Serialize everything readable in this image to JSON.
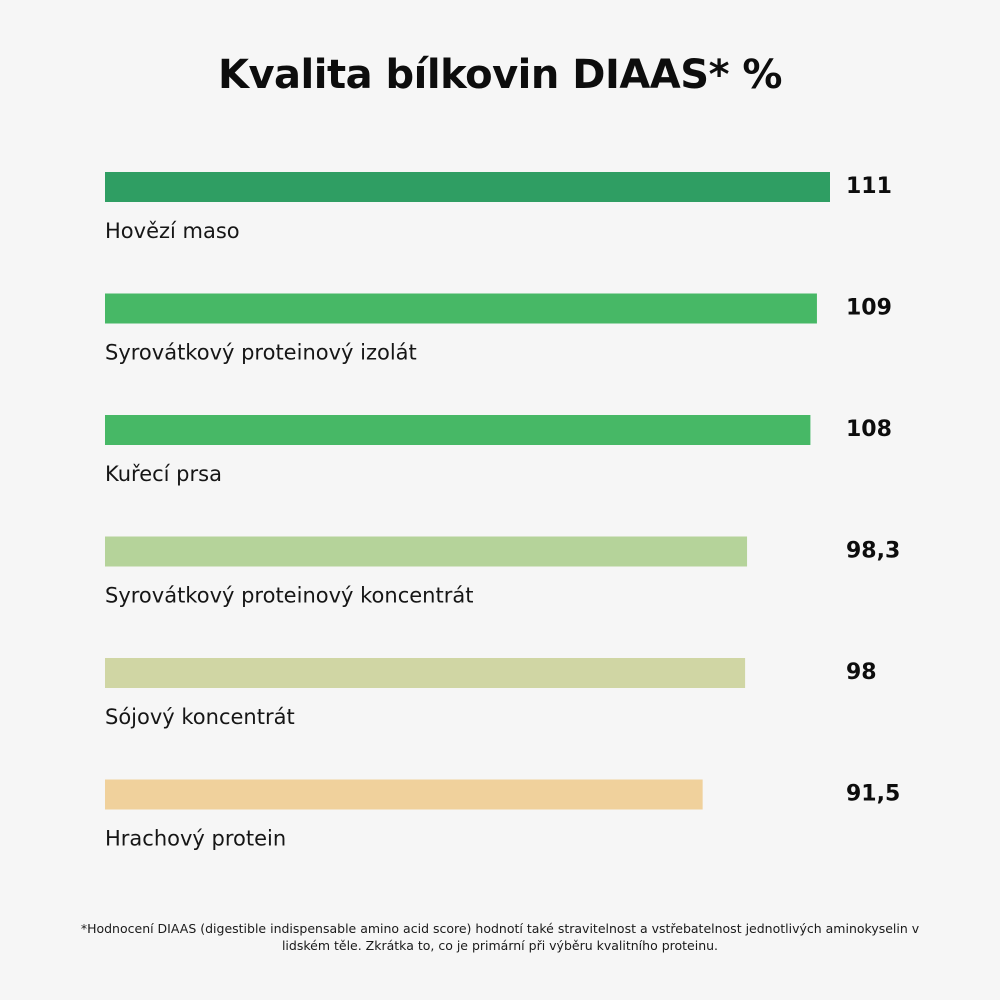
{
  "chart_data": {
    "type": "bar",
    "orientation": "horizontal",
    "title": "Kvalita bílkovin DIAAS* %",
    "categories": [
      "Hovězí maso",
      "Syrovátkový proteinový izolát",
      "Kuřecí prsa",
      "Syrovátkový proteinový koncentrát",
      "Sójový koncentrát",
      "Hrachový protein"
    ],
    "values": [
      111,
      109,
      108,
      98.3,
      98,
      91.5
    ],
    "value_labels": [
      "111",
      "109",
      "108",
      "98,3",
      "98",
      "91,5"
    ],
    "bar_colors": [
      "#2f9e63",
      "#47b866",
      "#47b866",
      "#b5d39a",
      "#d0d6a4",
      "#f0d19c"
    ],
    "xlim": [
      0,
      111
    ],
    "grid": false,
    "legend": "none",
    "footnote": "*Hodnocení DIAAS (digestible indispensable amino acid score) hodnotí také stravitelnost a vstřebatelnost jednotlivých aminokyselin v lidském těle. Zkrátka to, co je primární při výběru kvalitního proteinu."
  }
}
